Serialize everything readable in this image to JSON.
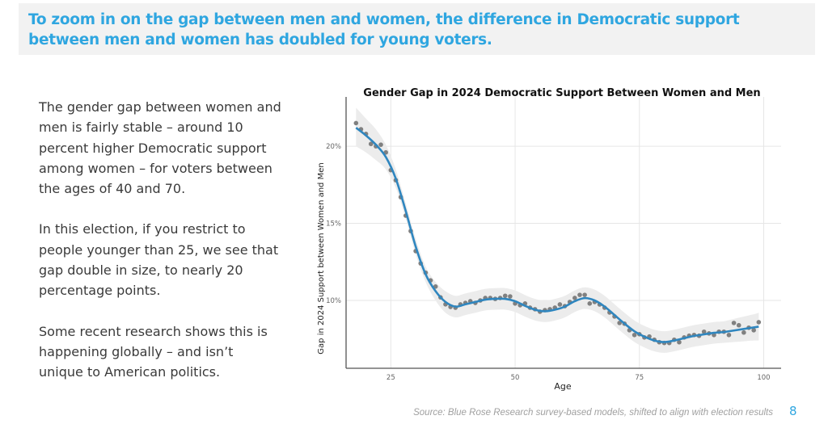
{
  "header": {
    "title": "To zoom in on the gap between men and women, the difference in Democratic support between men and women has doubled for young voters."
  },
  "body": {
    "paragraphs": [
      "The gender gap between women and men is fairly stable – around 10 percent higher Democratic support among women – for voters between the ages of 40 and 70.",
      "In this election, if you restrict to people younger than 25, we see that gap double in size, to nearly 20 percentage points.",
      "Some recent research shows this is happening globally – and isn’t unique to American politics."
    ]
  },
  "footer": {
    "source": "Source: Blue Rose Research survey-based models, shifted to align with election results",
    "page_number": "8"
  },
  "colors": {
    "accent": "#2fa6e0",
    "line": "#2f86bf",
    "points": "#808080",
    "band": "#ececec"
  },
  "chart_data": {
    "type": "scatter",
    "title": "Gender Gap in 2024 Democratic Support Between Women and Men",
    "xlabel": "Age",
    "ylabel": "Gap in 2024 Support between Women and Men",
    "xlim": [
      16,
      103.5
    ],
    "ylim": [
      5.6,
      23.2
    ],
    "xticks": [
      25,
      50,
      75,
      100
    ],
    "xtick_labels": [
      "25",
      "50",
      "75",
      "100"
    ],
    "yticks": [
      10,
      15,
      20
    ],
    "ytick_labels": [
      "10%",
      "15%",
      "20%"
    ],
    "grid": true,
    "legend": "none",
    "series": [
      {
        "name": "Observed gap",
        "kind": "points",
        "x": [
          18,
          19,
          20,
          21,
          22,
          23,
          24,
          25,
          26,
          27,
          28,
          29,
          30,
          31,
          32,
          33,
          34,
          35,
          36,
          37,
          38,
          39,
          40,
          41,
          42,
          43,
          44,
          45,
          46,
          47,
          48,
          49,
          50,
          51,
          52,
          53,
          54,
          55,
          56,
          57,
          58,
          59,
          60,
          61,
          62,
          63,
          64,
          65,
          66,
          67,
          68,
          69,
          70,
          71,
          72,
          73,
          74,
          75,
          76,
          77,
          78,
          79,
          80,
          81,
          82,
          83,
          84,
          85,
          86,
          87,
          88,
          89,
          90,
          91,
          92,
          93,
          94,
          95,
          96,
          97,
          98,
          99
        ],
        "values": [
          21.5,
          21.1,
          20.8,
          20.15,
          20.0,
          20.1,
          19.6,
          18.45,
          17.8,
          16.7,
          15.5,
          14.5,
          13.2,
          12.4,
          11.8,
          11.3,
          10.9,
          10.2,
          9.75,
          9.58,
          9.53,
          9.74,
          9.84,
          9.95,
          9.84,
          10.0,
          10.16,
          10.16,
          10.1,
          10.16,
          10.3,
          10.26,
          9.8,
          9.69,
          9.8,
          9.53,
          9.43,
          9.27,
          9.37,
          9.43,
          9.53,
          9.74,
          9.63,
          9.9,
          10.16,
          10.36,
          10.36,
          9.8,
          9.9,
          9.74,
          9.53,
          9.22,
          8.96,
          8.54,
          8.49,
          8.07,
          7.76,
          7.81,
          7.6,
          7.66,
          7.45,
          7.29,
          7.24,
          7.24,
          7.45,
          7.29,
          7.6,
          7.71,
          7.76,
          7.71,
          7.97,
          7.86,
          7.76,
          7.97,
          7.97,
          7.76,
          8.54,
          8.39,
          7.92,
          8.23,
          8.07,
          8.59
        ]
      },
      {
        "name": "Smoothed trend",
        "kind": "line",
        "x": [
          18,
          20,
          22,
          24,
          26,
          28,
          30,
          32,
          34,
          36,
          38,
          40,
          42,
          44,
          46,
          48,
          50,
          52,
          54,
          56,
          58,
          60,
          62,
          64,
          66,
          68,
          70,
          72,
          74,
          76,
          78,
          80,
          82,
          84,
          86,
          88,
          90,
          92,
          94,
          96,
          98,
          99
        ],
        "values": [
          21.2,
          20.7,
          20.1,
          19.3,
          17.9,
          15.8,
          13.5,
          11.7,
          10.6,
          9.9,
          9.6,
          9.75,
          9.9,
          10.05,
          10.1,
          10.1,
          9.95,
          9.65,
          9.4,
          9.3,
          9.4,
          9.6,
          9.95,
          10.15,
          10.0,
          9.6,
          9.05,
          8.5,
          8.0,
          7.65,
          7.4,
          7.3,
          7.4,
          7.55,
          7.7,
          7.8,
          7.9,
          7.95,
          8.05,
          8.15,
          8.25,
          8.3
        ]
      },
      {
        "name": "Confidence band",
        "kind": "band",
        "x": [
          18,
          20,
          22,
          24,
          26,
          28,
          30,
          32,
          34,
          36,
          38,
          40,
          42,
          44,
          46,
          48,
          50,
          52,
          54,
          56,
          58,
          60,
          62,
          64,
          66,
          68,
          70,
          72,
          74,
          76,
          78,
          80,
          82,
          84,
          86,
          88,
          90,
          92,
          94,
          96,
          98,
          99
        ],
        "lower": [
          20.0,
          19.6,
          19.1,
          18.5,
          17.3,
          15.3,
          13.0,
          11.2,
          10.0,
          9.2,
          8.9,
          9.05,
          9.2,
          9.35,
          9.4,
          9.4,
          9.25,
          8.95,
          8.7,
          8.6,
          8.7,
          8.9,
          9.25,
          9.45,
          9.3,
          8.9,
          8.35,
          7.8,
          7.3,
          6.95,
          6.7,
          6.6,
          6.7,
          6.85,
          7.0,
          7.1,
          7.2,
          7.25,
          7.3,
          7.35,
          7.4,
          7.4
        ],
        "upper": [
          22.5,
          21.8,
          21.1,
          20.1,
          18.5,
          16.3,
          14.0,
          12.2,
          11.2,
          10.6,
          10.3,
          10.45,
          10.6,
          10.75,
          10.8,
          10.8,
          10.65,
          10.35,
          10.1,
          10.0,
          10.1,
          10.3,
          10.65,
          10.85,
          10.7,
          10.3,
          9.75,
          9.2,
          8.7,
          8.35,
          8.1,
          8.0,
          8.1,
          8.25,
          8.4,
          8.5,
          8.6,
          8.65,
          8.8,
          8.95,
          9.1,
          9.2
        ]
      }
    ]
  }
}
